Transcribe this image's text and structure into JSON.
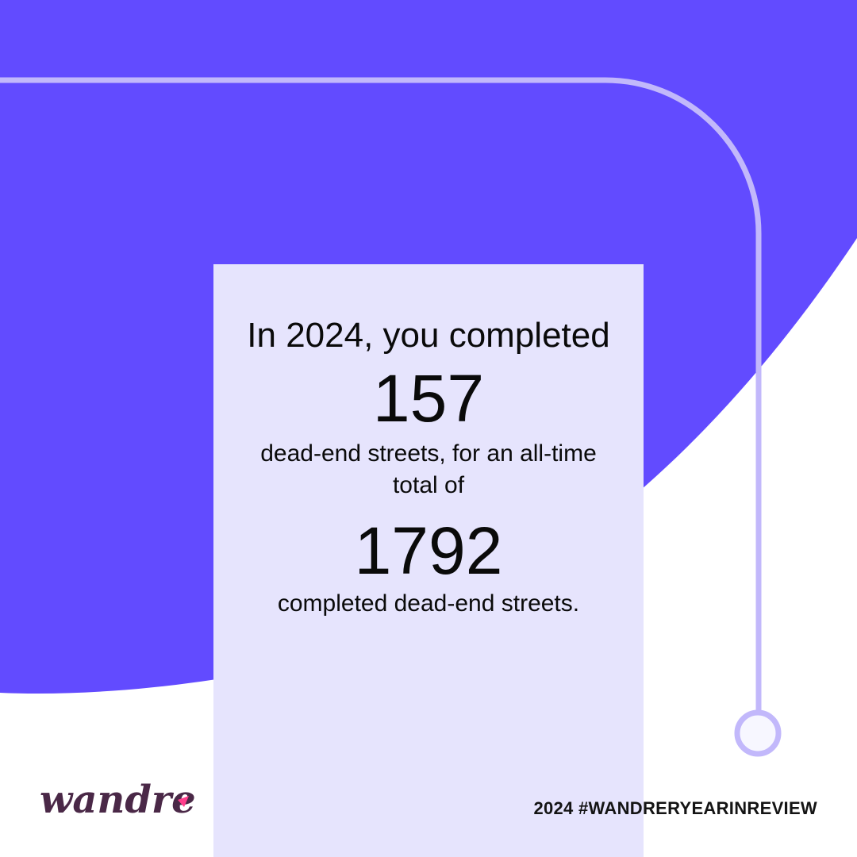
{
  "colors": {
    "primary": "#624bff",
    "track": "#c2b8fb",
    "card": "#e6e4fd",
    "logo": "#4a2847",
    "logo_accent": "#ff3d8b"
  },
  "card": {
    "headline": "In 2024, you completed",
    "year_count": "157",
    "mid_text": "dead-end streets, for an all-time total of",
    "total_count": "1792",
    "tail_text": "completed dead-end streets."
  },
  "brand": {
    "logo_text": "wandrer",
    "hashtag": "2024 #WANDRERYEARINREVIEW"
  },
  "icons": {
    "route_end": "circle-icon"
  }
}
